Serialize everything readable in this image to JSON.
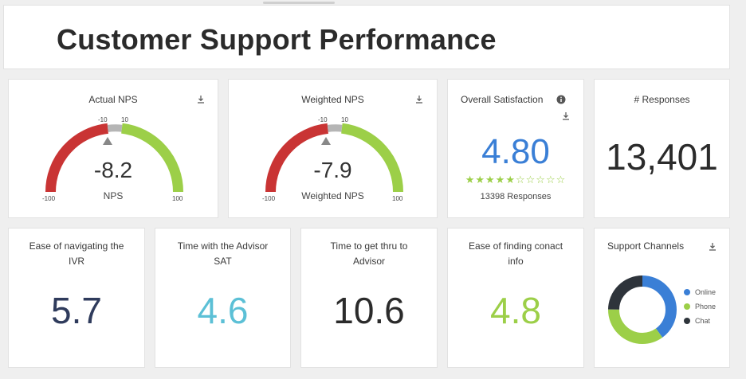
{
  "page": {
    "title": "Customer Support Performance"
  },
  "colors": {
    "red": "#c93434",
    "green": "#9ccf48",
    "grey": "#b5b5b5",
    "blue": "#3a7fd6",
    "navy": "#2f3b5c",
    "teal": "#5cc0d6",
    "dark": "#2b2b2b"
  },
  "nps": {
    "title": "Actual NPS",
    "value": "-8.2",
    "label": "NPS",
    "min": "-100",
    "max": "100",
    "band_low": "-10",
    "band_high": "10",
    "download_icon": "download-icon"
  },
  "weighted_nps": {
    "title": "Weighted NPS",
    "value": "-7.9",
    "label": "Weighted NPS",
    "min": "-100",
    "max": "100",
    "band_low": "-10",
    "band_high": "10",
    "download_icon": "download-icon"
  },
  "satisfaction": {
    "title": "Overall Satisfaction",
    "value": "4.80",
    "rating": 4.8,
    "stars_total": 10,
    "stars_filled": 5,
    "responses": "13398 Responses",
    "info_icon": "info-icon",
    "download_icon": "download-icon"
  },
  "responses": {
    "title": "# Responses",
    "value": "13,401"
  },
  "ivr": {
    "title": "Ease of navigating the IVR",
    "value": "5.7"
  },
  "advisor_sat": {
    "title": "Time with the Advisor SAT",
    "value": "4.6"
  },
  "time_to_advisor": {
    "title": "Time to get thru to Advisor",
    "value": "10.6"
  },
  "contact_info": {
    "title": "Ease of finding conact info",
    "value": "4.8"
  },
  "channels": {
    "title": "Support Channels",
    "download_icon": "download-icon",
    "items": [
      {
        "label": "Online",
        "color": "#3a7fd6",
        "share": 0.4
      },
      {
        "label": "Phone",
        "color": "#9ccf48",
        "share": 0.35
      },
      {
        "label": "Chat",
        "color": "#2e343b",
        "share": 0.25
      }
    ]
  }
}
